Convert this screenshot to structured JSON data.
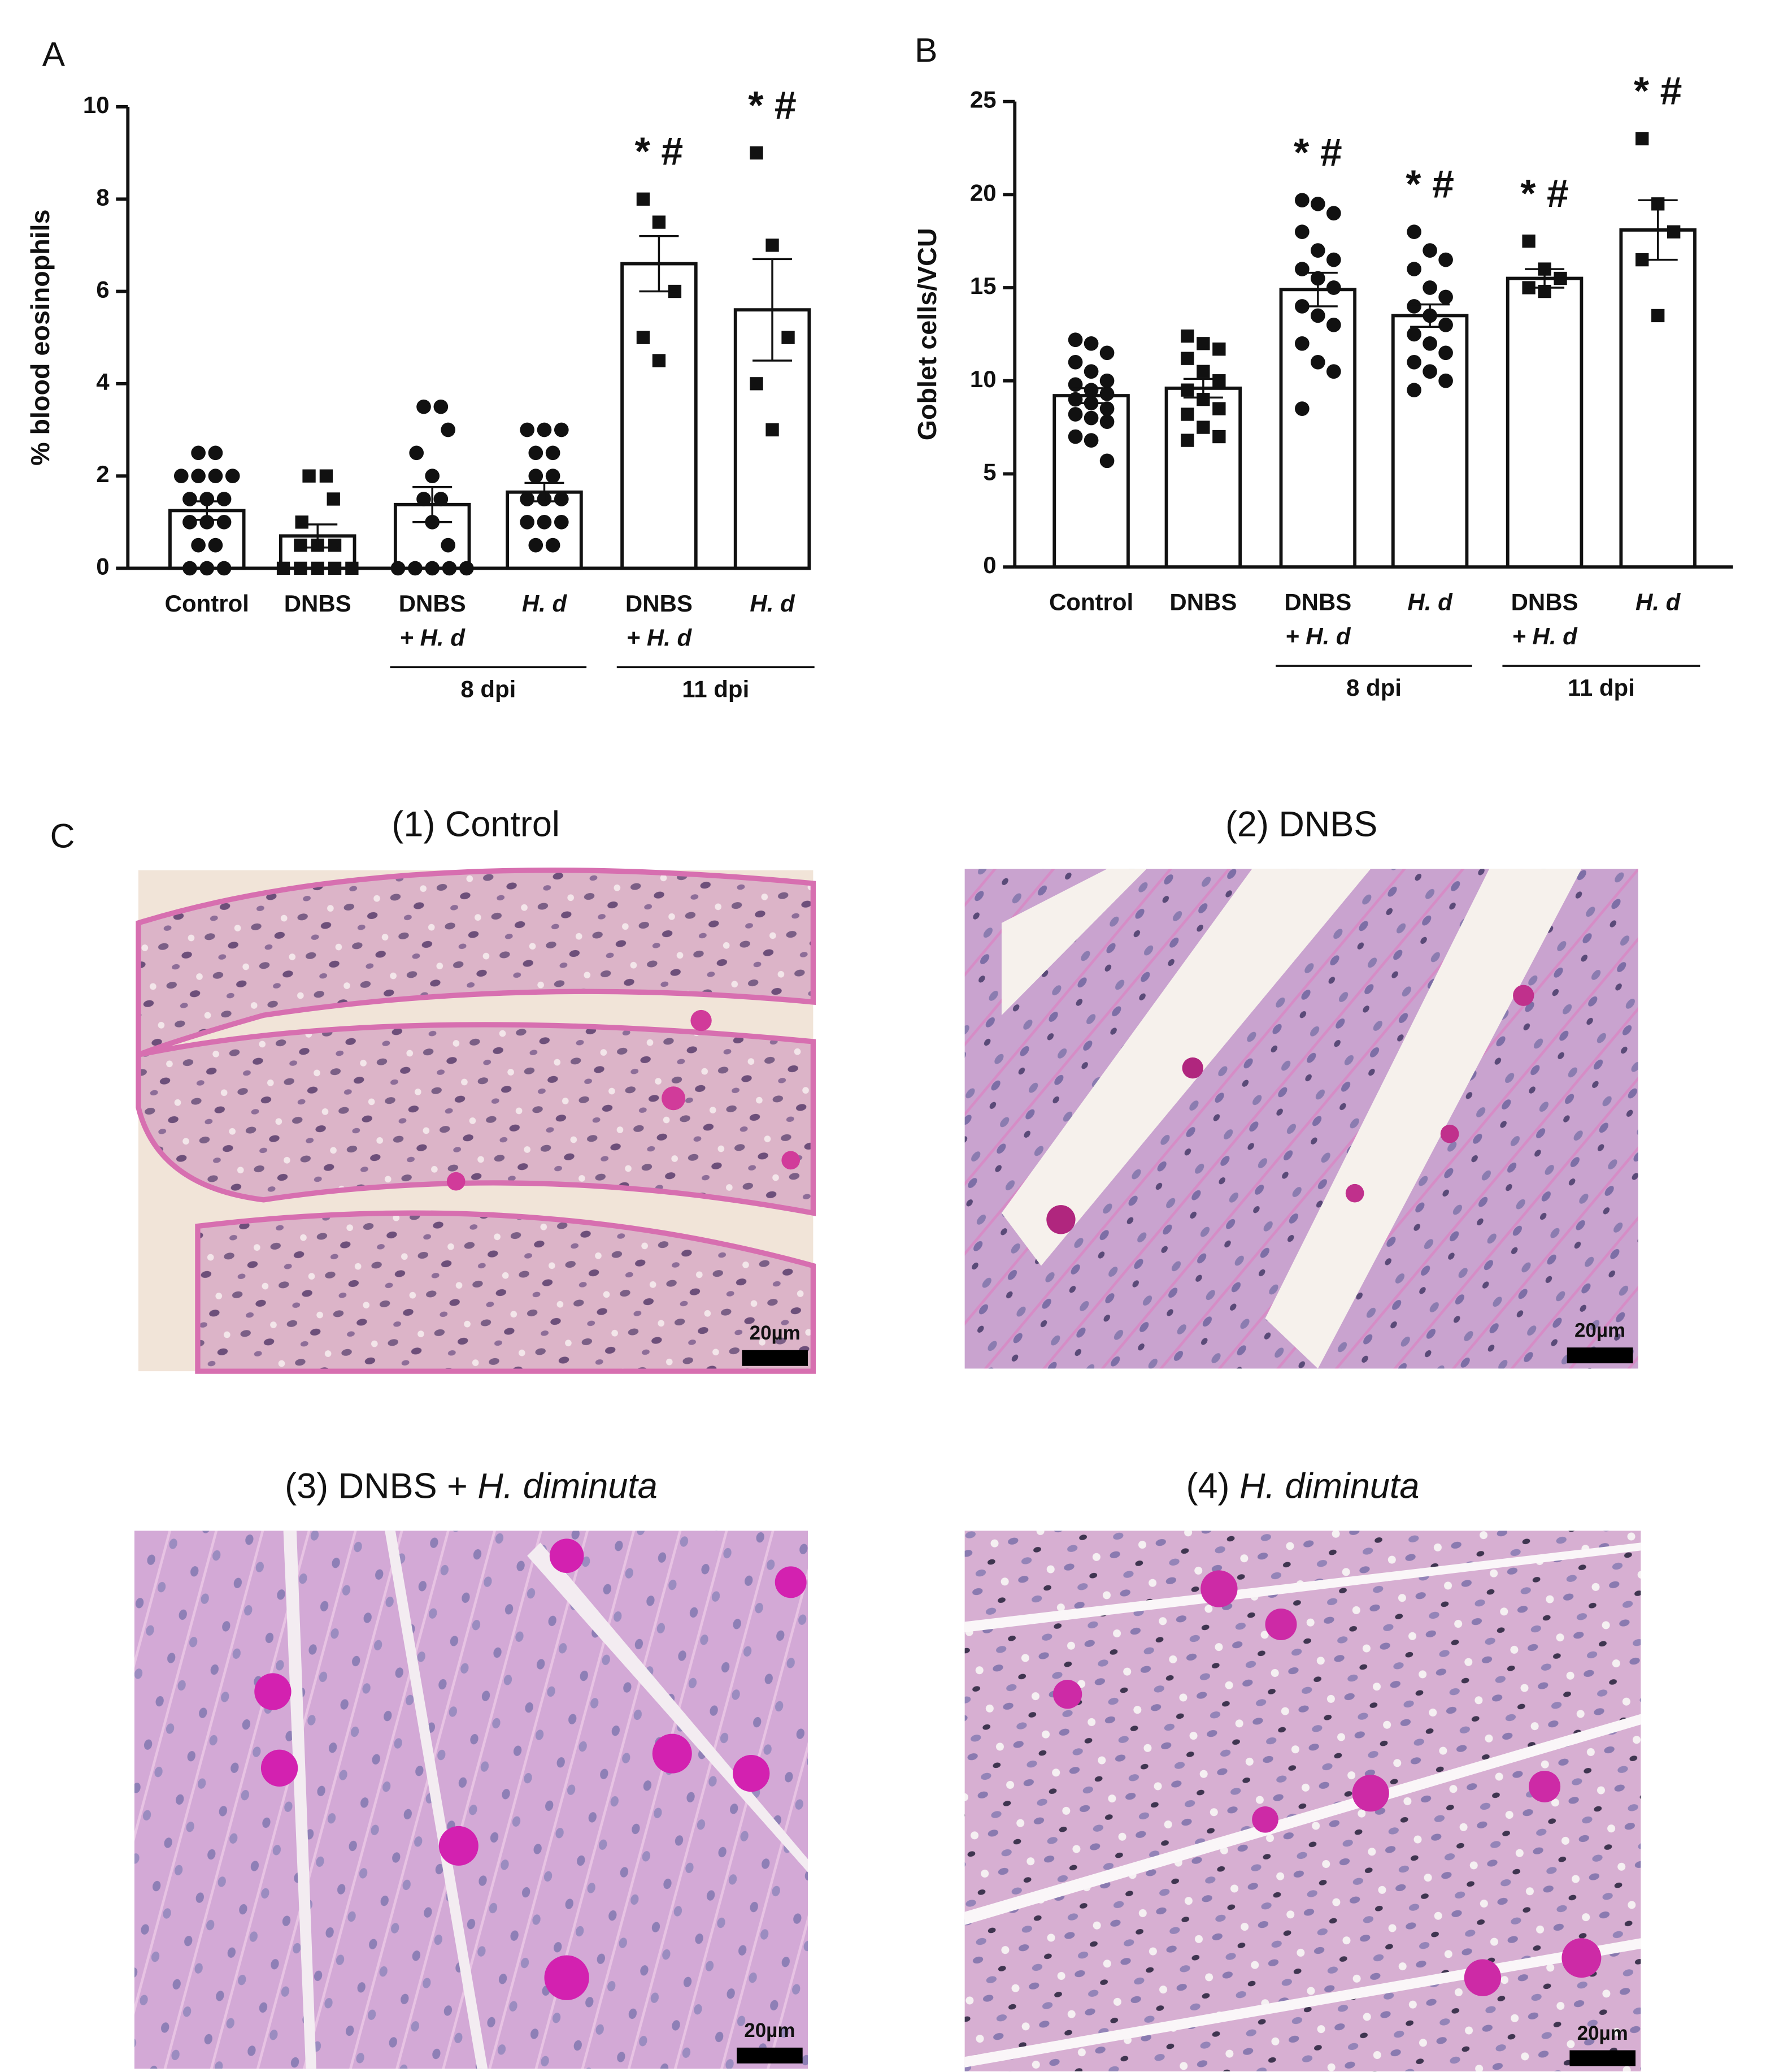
{
  "panel_labels": [
    "A",
    "B",
    "C"
  ],
  "chart_data": [
    {
      "type": "bar",
      "ylabel": "% blood eosinophils",
      "categories": [
        [
          "Control"
        ],
        [
          "DNBS"
        ],
        [
          "DNBS",
          "+ H. d"
        ],
        [
          "H. d"
        ],
        [
          "DNBS",
          "+ H. d"
        ],
        [
          "H. d"
        ]
      ],
      "groups": [
        {
          "label": "8 dpi",
          "from": 2,
          "to": 3
        },
        {
          "label": "11 dpi",
          "from": 4,
          "to": 5
        }
      ],
      "bars": {
        "values": [
          1.25,
          0.7,
          1.38,
          1.65,
          6.6,
          5.6
        ],
        "errors": [
          0.2,
          0.25,
          0.38,
          0.2,
          0.6,
          1.1
        ]
      },
      "markers": [
        "circle",
        "square",
        "circle",
        "circle",
        "square",
        "square"
      ],
      "points": [
        [
          2.5,
          2.5,
          2,
          2,
          2,
          2,
          1.5,
          1.5,
          1.5,
          1,
          1,
          1,
          0.5,
          0.5,
          0,
          0,
          0
        ],
        [
          2,
          2,
          1.5,
          1,
          0.5,
          0.5,
          0.5,
          0,
          0,
          0,
          0,
          0
        ],
        [
          3.5,
          3.5,
          3,
          2.5,
          2,
          1.5,
          1.5,
          1,
          0.5,
          0,
          0,
          0,
          0,
          0
        ],
        [
          3,
          3,
          3,
          2.5,
          2.5,
          2,
          2,
          1.5,
          1.5,
          1.5,
          1,
          1,
          1,
          0.5,
          0.5
        ],
        [
          8,
          7.5,
          6,
          5,
          4.5
        ],
        [
          9,
          7,
          5,
          4,
          3
        ]
      ],
      "annotations": [
        {
          "label": "* #",
          "category": 4
        },
        {
          "label": "* #",
          "category": 5
        }
      ],
      "ylim": [
        0,
        10
      ],
      "yticks": [
        0,
        2,
        4,
        6,
        8,
        10
      ]
    },
    {
      "type": "bar",
      "ylabel": "Goblet cells/VCU",
      "categories": [
        [
          "Control"
        ],
        [
          "DNBS"
        ],
        [
          "DNBS",
          "+ H. d"
        ],
        [
          "H. d"
        ],
        [
          "DNBS",
          "+ H. d"
        ],
        [
          "H. d"
        ]
      ],
      "groups": [
        {
          "label": "8 dpi",
          "from": 2,
          "to": 3
        },
        {
          "label": "11 dpi",
          "from": 4,
          "to": 5
        }
      ],
      "bars": {
        "values": [
          9.2,
          9.6,
          14.9,
          13.5,
          15.5,
          18.1
        ],
        "errors": [
          0.4,
          0.5,
          0.9,
          0.6,
          0.5,
          1.6
        ]
      },
      "markers": [
        "circle",
        "square",
        "circle",
        "circle",
        "square",
        "square"
      ],
      "points": [
        [
          12.2,
          12,
          11.5,
          11,
          10.5,
          10,
          9.8,
          9.5,
          9.3,
          9,
          8.8,
          8.5,
          8.2,
          8,
          7.8,
          7,
          6.8,
          5.7
        ],
        [
          12.4,
          12,
          11.7,
          11.2,
          10.5,
          10,
          9.5,
          9,
          8.5,
          8.2,
          7.5,
          7,
          6.8
        ],
        [
          19.7,
          19.5,
          19,
          18,
          17,
          16.5,
          16,
          15.5,
          15,
          14,
          13.5,
          13,
          12,
          11,
          10.5,
          8.5
        ],
        [
          18,
          17,
          16.5,
          16,
          15,
          14.5,
          14,
          13.5,
          13,
          12.5,
          12,
          11.5,
          11,
          10.5,
          10,
          9.5
        ],
        [
          17.5,
          16,
          15.5,
          15,
          14.8
        ],
        [
          23,
          19.5,
          18,
          16.5,
          13.5
        ]
      ],
      "annotations": [
        {
          "label": "* #",
          "category": 2
        },
        {
          "label": "* #",
          "category": 3
        },
        {
          "label": "* #",
          "category": 4
        },
        {
          "label": "* #",
          "category": 5
        }
      ],
      "ylim": [
        0,
        25
      ],
      "yticks": [
        0,
        5,
        10,
        15,
        20,
        25
      ]
    }
  ],
  "images": [
    {
      "title": [
        {
          "text": "(1) Control"
        }
      ],
      "scale_bar": "20µm"
    },
    {
      "title": [
        {
          "text": "(2) DNBS"
        }
      ],
      "scale_bar": "20µm"
    },
    {
      "title": [
        {
          "text": "(3) DNBS + "
        },
        {
          "text": "H. diminuta",
          "italic": true
        }
      ],
      "scale_bar": "20µm"
    },
    {
      "title": [
        {
          "text": "(4) "
        },
        {
          "text": "H. diminuta",
          "italic": true
        }
      ],
      "scale_bar": "20µm"
    }
  ]
}
